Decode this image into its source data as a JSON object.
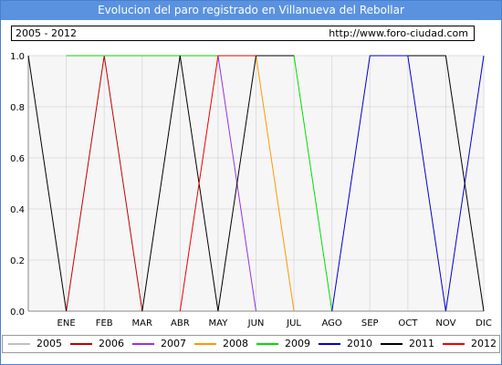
{
  "header": {
    "title": "Evolucion del paro registrado en Villanueva del Rebollar",
    "period": "2005 - 2012",
    "url": "http://www.foro-ciudad.com"
  },
  "chart_data": {
    "type": "line",
    "title": "Evolucion del paro registrado en Villanueva del Rebollar",
    "xlabel": "",
    "ylabel": "",
    "categories": [
      "",
      "ENE",
      "FEB",
      "MAR",
      "ABR",
      "MAY",
      "JUN",
      "JUL",
      "AGO",
      "SEP",
      "OCT",
      "NOV",
      "DIC"
    ],
    "ylim": [
      0,
      1
    ],
    "yticks": [
      "0.0",
      "0.2",
      "0.4",
      "0.6",
      "0.8",
      "1.0"
    ],
    "grid": true,
    "legend_position": "bottom",
    "series": [
      {
        "name": "2005",
        "color": "#c0c0c0",
        "values": [
          null,
          null,
          null,
          null,
          null,
          null,
          null,
          null,
          null,
          null,
          null,
          null,
          null
        ]
      },
      {
        "name": "2006",
        "color": "#c00000",
        "values": [
          null,
          0,
          1,
          0,
          null,
          null,
          null,
          null,
          null,
          null,
          null,
          null,
          null
        ]
      },
      {
        "name": "2007",
        "color": "#9b30e0",
        "values": [
          null,
          null,
          null,
          null,
          null,
          1,
          0,
          null,
          null,
          null,
          null,
          null,
          null
        ]
      },
      {
        "name": "2008",
        "color": "#ff9900",
        "values": [
          null,
          null,
          null,
          null,
          null,
          null,
          1,
          0,
          null,
          null,
          null,
          null,
          null
        ]
      },
      {
        "name": "2009",
        "color": "#00dd00",
        "values": [
          null,
          1,
          1,
          1,
          1,
          1,
          1,
          1,
          0,
          null,
          null,
          null,
          null
        ]
      },
      {
        "name": "2010",
        "color": "#0000cc",
        "values": [
          null,
          null,
          null,
          null,
          null,
          null,
          null,
          null,
          0,
          1,
          1,
          0,
          1
        ]
      },
      {
        "name": "2011",
        "color": "#000000",
        "values": [
          1,
          0,
          null,
          0,
          1,
          0,
          1,
          1,
          null,
          null,
          1,
          1,
          0
        ]
      },
      {
        "name": "2012",
        "color": "#ee0000",
        "values": [
          null,
          null,
          null,
          null,
          0,
          1,
          1,
          null,
          null,
          null,
          null,
          null,
          null
        ]
      }
    ]
  }
}
